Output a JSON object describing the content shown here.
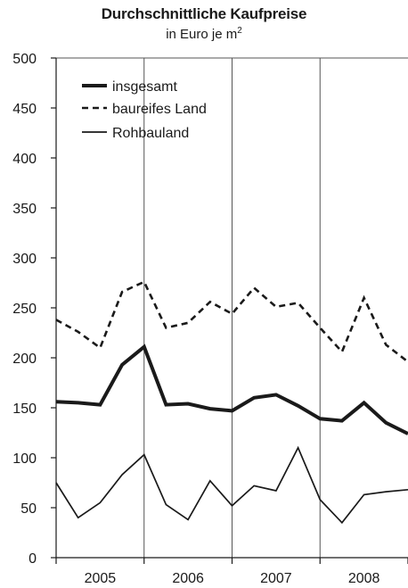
{
  "chart_data": {
    "type": "line",
    "title": "Durchschnittliche Kaufpreise",
    "subtitle": "in Euro je m",
    "subtitle_sup": "2",
    "ylim": [
      0,
      500
    ],
    "yticks": [
      0,
      50,
      100,
      150,
      200,
      250,
      300,
      350,
      400,
      450,
      500
    ],
    "xlim": [
      0,
      16
    ],
    "year_labels": [
      {
        "label": "2005",
        "x": 2
      },
      {
        "label": "2006",
        "x": 6
      },
      {
        "label": "2007",
        "x": 10
      },
      {
        "label": "2008",
        "x": 14
      }
    ],
    "grid": {
      "vertical_at": [
        4,
        8,
        12
      ],
      "horizontal": false
    },
    "legend_position": "top-left",
    "series": [
      {
        "name": "insgesamt",
        "style": "thick-solid",
        "x": [
          0,
          1,
          2,
          3,
          4,
          5,
          6,
          7,
          8,
          9,
          10,
          11,
          12,
          13,
          14,
          15,
          16
        ],
        "values": [
          156,
          155,
          153,
          193,
          211,
          153,
          154,
          149,
          147,
          160,
          163,
          152,
          139,
          137,
          155,
          135,
          124
        ]
      },
      {
        "name": "baureifes Land",
        "style": "dashed",
        "x": [
          0,
          1,
          2,
          3,
          4,
          5,
          6,
          7,
          8,
          9,
          10,
          11,
          12,
          13,
          14,
          15,
          16
        ],
        "values": [
          238,
          226,
          210,
          266,
          276,
          230,
          235,
          256,
          244,
          270,
          251,
          255,
          230,
          206,
          260,
          213,
          196
        ]
      },
      {
        "name": "Rohbauland",
        "style": "thin-solid",
        "x": [
          0,
          1,
          2,
          3,
          4,
          5,
          6,
          7,
          8,
          9,
          10,
          11,
          12,
          13,
          14,
          15,
          16
        ],
        "values": [
          75,
          40,
          55,
          83,
          103,
          53,
          38,
          77,
          52,
          72,
          67,
          110,
          58,
          35,
          63,
          66,
          68
        ]
      }
    ]
  }
}
